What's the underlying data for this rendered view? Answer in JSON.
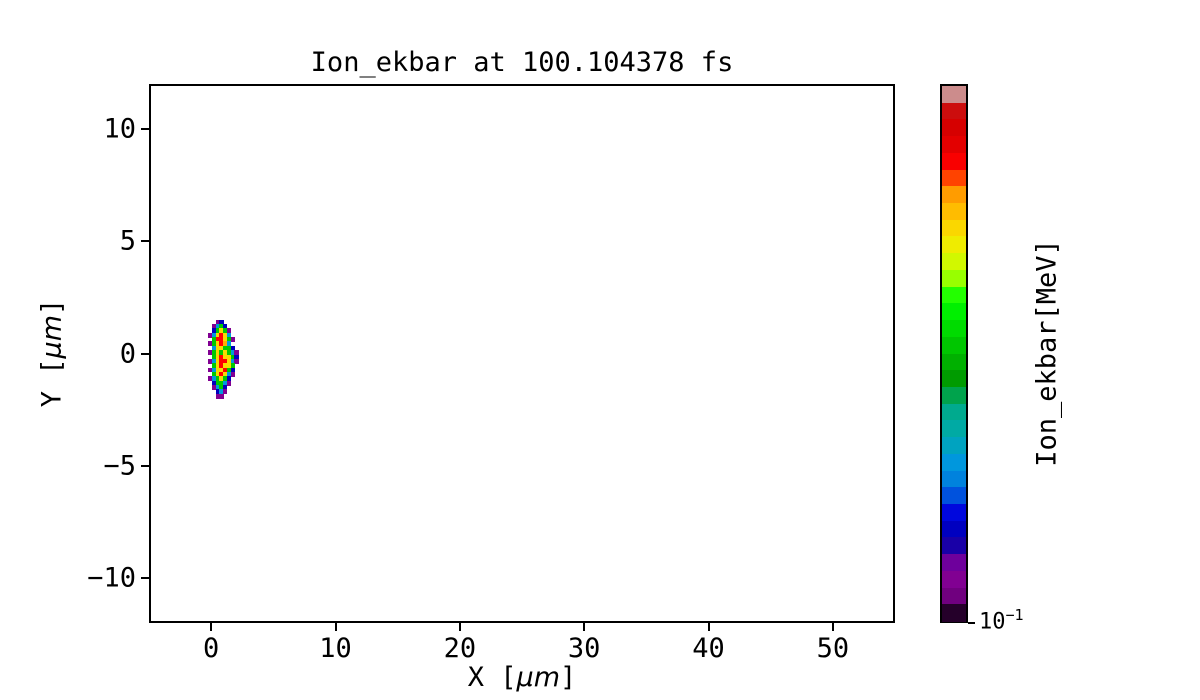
{
  "figure": {
    "background": "#ffffff",
    "text_color": "#000000"
  },
  "chart_data": {
    "type": "heatmap",
    "title": "Ion_ekbar at 100.104378 fs",
    "xlabel": {
      "pre": "X [",
      "unit": "μm",
      "post": "]"
    },
    "ylabel": {
      "pre": "Y [",
      "unit": "μm",
      "post": "]"
    },
    "xlim": [
      -5,
      55
    ],
    "ylim": [
      -12,
      12
    ],
    "x_ticks": [
      {
        "value": 0,
        "label": "0"
      },
      {
        "value": 10,
        "label": "10"
      },
      {
        "value": 20,
        "label": "20"
      },
      {
        "value": 30,
        "label": "30"
      },
      {
        "value": 40,
        "label": "40"
      },
      {
        "value": 50,
        "label": "50"
      }
    ],
    "y_ticks": [
      {
        "value": 10,
        "label": "10"
      },
      {
        "value": 5,
        "label": "5"
      },
      {
        "value": 0,
        "label": "0"
      },
      {
        "value": -5,
        "label": "−5"
      },
      {
        "value": -10,
        "label": "−10"
      }
    ],
    "grid": "off",
    "legend": "none",
    "colorbar": {
      "label": "Ion_ekbar[MeV]",
      "scale": "log",
      "bottom_tick": {
        "base": "10",
        "exponent": "−1"
      },
      "n_bands": 32,
      "colormap": "nipy_spectral",
      "colormap_stops": {
        "x": [
          0.0,
          0.05,
          0.1,
          0.15,
          0.2,
          0.25,
          0.3,
          0.35,
          0.4,
          0.45,
          0.5,
          0.55,
          0.6,
          0.65,
          0.7,
          0.75,
          0.8,
          0.85,
          0.9,
          0.95,
          1.0
        ],
        "r": [
          0.0,
          0.4667,
          0.5333,
          0.0,
          0.0,
          0.0,
          0.0,
          0.0,
          0.0,
          0.0,
          0.0,
          0.0,
          0.0,
          0.7333,
          0.9333,
          1.0,
          1.0,
          1.0,
          0.8667,
          0.8,
          0.8
        ],
        "g": [
          0.0,
          0.0,
          0.0,
          0.0,
          0.0,
          0.4667,
          0.6,
          0.6667,
          0.6667,
          0.6,
          0.7333,
          0.8667,
          1.0,
          1.0,
          0.9333,
          0.8,
          0.6,
          0.0,
          0.0,
          0.0,
          0.8
        ],
        "b": [
          0.0,
          0.5333,
          0.6,
          0.6667,
          0.8667,
          0.8667,
          0.8667,
          0.6667,
          0.5333,
          0.0,
          0.0,
          0.0,
          0.0,
          0.0,
          0.0,
          0.0,
          0.0,
          0.0,
          0.0,
          0.0,
          0.8
        ]
      }
    },
    "blob": {
      "description": "pixelated ion energy deposit near the origin",
      "x_extent_um": [
        -0.4,
        2.0
      ],
      "y_extent_um": [
        -1.9,
        1.6
      ],
      "cmap_values_grid": [
        [
          -1,
          -1,
          0.08,
          0.17,
          -1,
          -1,
          -1,
          -1
        ],
        [
          -1,
          0.08,
          0.3,
          0.52,
          0.17,
          -1,
          -1,
          -1
        ],
        [
          -1,
          0.17,
          0.52,
          0.73,
          0.52,
          0.08,
          -1,
          -1
        ],
        [
          0.08,
          0.3,
          0.73,
          0.85,
          0.73,
          0.3,
          -1,
          -1
        ],
        [
          -1,
          0.52,
          0.85,
          0.85,
          0.73,
          0.52,
          0.08,
          -1
        ],
        [
          0.08,
          0.52,
          0.73,
          0.85,
          0.78,
          0.3,
          -1,
          -1
        ],
        [
          -1,
          0.3,
          0.73,
          0.73,
          0.52,
          0.52,
          0.17,
          -1
        ],
        [
          0.08,
          0.52,
          0.73,
          0.52,
          0.73,
          0.52,
          0.3,
          0.08
        ],
        [
          -1,
          0.52,
          0.73,
          0.85,
          0.73,
          0.73,
          0.52,
          0.17
        ],
        [
          0.08,
          0.3,
          0.73,
          0.85,
          0.85,
          0.73,
          0.3,
          0.08
        ],
        [
          -1,
          0.52,
          0.73,
          0.85,
          0.73,
          0.73,
          0.52,
          -1
        ],
        [
          0.08,
          0.3,
          0.73,
          0.73,
          0.85,
          0.52,
          0.17,
          -1
        ],
        [
          -1,
          0.52,
          0.73,
          0.85,
          0.73,
          0.3,
          0.08,
          -1
        ],
        [
          0.08,
          0.3,
          0.52,
          0.73,
          0.52,
          0.17,
          -1,
          -1
        ],
        [
          -1,
          0.17,
          0.52,
          0.52,
          0.3,
          0.08,
          -1,
          -1
        ],
        [
          -1,
          0.08,
          0.3,
          0.52,
          0.17,
          -1,
          -1,
          -1
        ],
        [
          -1,
          -1,
          0.17,
          0.3,
          0.08,
          -1,
          -1,
          -1
        ],
        [
          -1,
          -1,
          0.08,
          0.08,
          -1,
          -1,
          -1,
          -1
        ]
      ]
    }
  }
}
